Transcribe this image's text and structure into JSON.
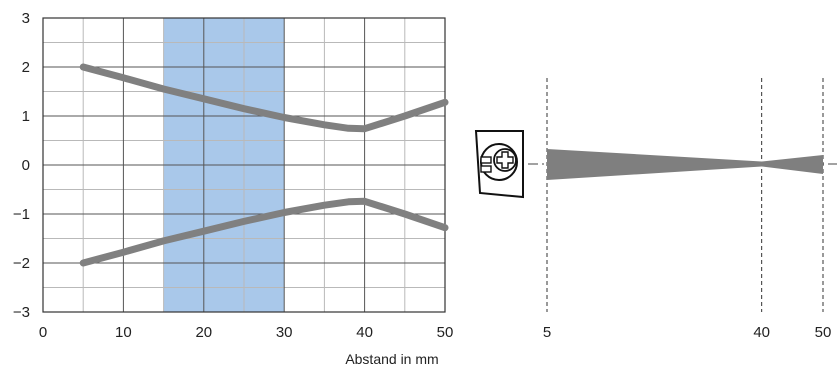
{
  "chart_data": [
    {
      "type": "line",
      "title": "",
      "xlabel": "Abstand in mm",
      "ylabel": "",
      "xlim": [
        0,
        50
      ],
      "ylim": [
        -3,
        3
      ],
      "x_ticks": [
        "0",
        "10",
        "20",
        "30",
        "40",
        "50"
      ],
      "y_ticks": [
        "3",
        "2",
        "1",
        "0",
        "−1",
        "−2",
        "−3"
      ],
      "grid": true,
      "legend": "none",
      "highlight_band": {
        "x_from": 15,
        "x_to": 30,
        "color": "#a9c8ea"
      },
      "series": [
        {
          "x": [
            5,
            10,
            15,
            20,
            25,
            30,
            35,
            38,
            40,
            45,
            50
          ],
          "y": [
            2.0,
            1.78,
            1.55,
            1.35,
            1.15,
            0.97,
            0.82,
            0.75,
            0.74,
            1.0,
            1.28
          ],
          "color": "#808080"
        },
        {
          "x": [
            5,
            10,
            15,
            20,
            25,
            30,
            35,
            38,
            40,
            45,
            50
          ],
          "y": [
            -2.0,
            -1.78,
            -1.55,
            -1.35,
            -1.15,
            -0.97,
            -0.82,
            -0.75,
            -0.74,
            -1.0,
            -1.28
          ],
          "color": "#808080"
        }
      ]
    },
    {
      "type": "area",
      "title": "",
      "x_ticks": [
        "5",
        "40",
        "50"
      ],
      "x_positions": [
        5,
        40,
        50
      ],
      "color": "#7f7f7f"
    }
  ]
}
